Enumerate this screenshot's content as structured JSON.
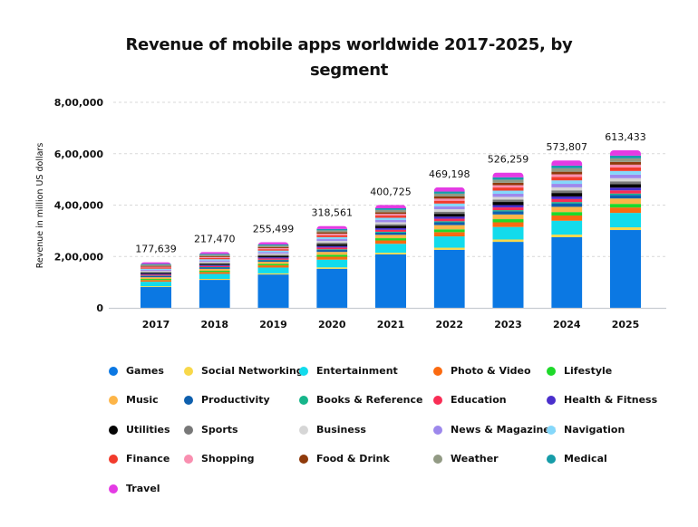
{
  "chart_data": {
    "type": "bar",
    "stacked": true,
    "title": "Revenue of mobile apps worldwide 2017-2025, by segment",
    "title_lines": [
      "Revenue of mobile apps worldwide 2017-2025, by",
      "segment"
    ],
    "xlabel": "",
    "ylabel": "Revenue in million US dollars",
    "ylim": [
      0,
      800000
    ],
    "yticks": [
      0,
      200000,
      400000,
      600000,
      800000
    ],
    "ytick_labels": [
      "0",
      "2,00,000",
      "4,00,000",
      "6,00,000",
      "8,00,000"
    ],
    "grid": true,
    "legend_position": "bottom",
    "categories": [
      "2017",
      "2018",
      "2019",
      "2020",
      "2021",
      "2022",
      "2023",
      "2024",
      "2025"
    ],
    "totals": [
      177639,
      217470,
      255499,
      318561,
      400725,
      469198,
      526259,
      573807,
      613433
    ],
    "total_labels": [
      "177,639",
      "217,470",
      "255,499",
      "318,561",
      "400,725",
      "469,198",
      "526,259",
      "573,807",
      "613,433"
    ],
    "series": [
      {
        "name": "Games",
        "color": "#0b78e3",
        "values": [
          81000,
          109000,
          130000,
          152000,
          208000,
          226000,
          257000,
          275000,
          303000
        ]
      },
      {
        "name": "Social Networking",
        "color": "#f8d84a",
        "values": [
          3276,
          3677,
          4254,
          5646,
          6533,
          8244,
          9127,
          10129,
          10523
        ]
      },
      {
        "name": "Entertainment",
        "color": "#12dbec",
        "values": [
          17472,
          19610,
          22689,
          30113,
          34843,
          43968,
          48680,
          54022,
          56124
        ]
      },
      {
        "name": "Photo & Video",
        "color": "#fb6a10",
        "values": [
          6552,
          7354,
          8508,
          11292,
          13066,
          16488,
          18255,
          20258,
          21046
        ]
      },
      {
        "name": "Lifestyle",
        "color": "#1ed92a",
        "values": [
          4368,
          4903,
          5672,
          7528,
          8711,
          10992,
          12170,
          13505,
          14031
        ]
      },
      {
        "name": "Music",
        "color": "#fdb548",
        "values": [
          6552,
          7354,
          8508,
          11292,
          13066,
          16488,
          18255,
          20258,
          21046
        ]
      },
      {
        "name": "Productivity",
        "color": "#0e5fad",
        "values": [
          4368,
          4903,
          5672,
          7528,
          8711,
          10992,
          12170,
          13505,
          14031
        ]
      },
      {
        "name": "Books & Reference",
        "color": "#16b58a",
        "values": [
          1638,
          1838,
          2127,
          2823,
          3267,
          4122,
          4564,
          5065,
          5262
        ]
      },
      {
        "name": "Education",
        "color": "#f92d55",
        "values": [
          3822,
          4290,
          4963,
          6587,
          7622,
          9618,
          10649,
          11817,
          12277
        ]
      },
      {
        "name": "Health & Fitness",
        "color": "#4a2fcc",
        "values": [
          3276,
          3677,
          4254,
          5646,
          6533,
          8244,
          9127,
          10129,
          10523
        ]
      },
      {
        "name": "Utilities",
        "color": "#050505",
        "values": [
          4368,
          4903,
          5672,
          7528,
          8711,
          10992,
          12170,
          13505,
          14031
        ]
      },
      {
        "name": "Sports",
        "color": "#787878",
        "values": [
          3276,
          3677,
          4254,
          5646,
          6533,
          8244,
          9127,
          10129,
          10523
        ]
      },
      {
        "name": "Business",
        "color": "#d6d6d6",
        "values": [
          3822,
          4290,
          4963,
          6587,
          7622,
          9618,
          10649,
          11817,
          12277
        ]
      },
      {
        "name": "News & Magazines",
        "color": "#9d88ec",
        "values": [
          4368,
          4903,
          5672,
          7528,
          8711,
          10992,
          12170,
          13505,
          14031
        ]
      },
      {
        "name": "Navigation",
        "color": "#85d8fb",
        "values": [
          4368,
          4903,
          5672,
          7528,
          8711,
          10992,
          12170,
          13505,
          14031
        ]
      },
      {
        "name": "Finance",
        "color": "#f23b2c",
        "values": [
          4368,
          4903,
          5672,
          7528,
          8711,
          10992,
          12170,
          13505,
          14031
        ]
      },
      {
        "name": "Shopping",
        "color": "#f98fb0",
        "values": [
          3276,
          3677,
          4254,
          5646,
          6533,
          8244,
          9127,
          10129,
          10523
        ]
      },
      {
        "name": "Food & Drink",
        "color": "#8f3a0b",
        "values": [
          3276,
          3677,
          4254,
          5646,
          6533,
          8244,
          9127,
          10129,
          10523
        ]
      },
      {
        "name": "Weather",
        "color": "#929a84",
        "values": [
          4368,
          4903,
          5672,
          7528,
          8711,
          10992,
          12170,
          13505,
          14031
        ]
      },
      {
        "name": "Medical",
        "color": "#169ca8",
        "values": [
          3276,
          3677,
          4254,
          5646,
          6533,
          8244,
          9127,
          10129,
          10523
        ]
      },
      {
        "name": "Travel",
        "color": "#e43be4",
        "values": [
          6549,
          7351,
          8513,
          11295,
          13064,
          16488,
          18255,
          20261,
          21046
        ]
      }
    ]
  }
}
